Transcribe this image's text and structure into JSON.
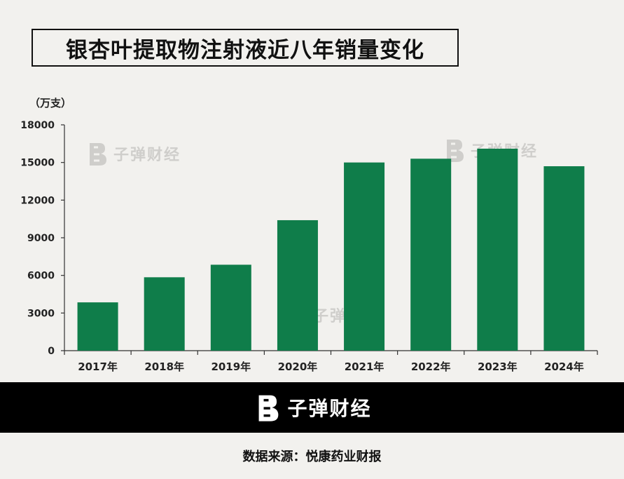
{
  "title": "银杏叶提取物注射液近八年销量变化",
  "unit": "（万支）",
  "brand": "子弹财经",
  "source": "数据来源：悦康药业财报",
  "colors": {
    "bar": "#0f7d4a",
    "band": "#000000",
    "background": "#f2f1ee"
  },
  "icons": {
    "logo": "bullet-logo-icon"
  },
  "chart_data": {
    "type": "bar",
    "categories": [
      "2017年",
      "2018年",
      "2019年",
      "2020年",
      "2021年",
      "2022年",
      "2023年",
      "2024年"
    ],
    "values": [
      3850,
      5850,
      6850,
      10400,
      15000,
      15300,
      16100,
      14700
    ],
    "yticks": [
      "0",
      "3000",
      "6000",
      "9000",
      "12000",
      "15000",
      "18000"
    ],
    "ylim": [
      0,
      18000
    ],
    "grid": false,
    "legend": "none"
  }
}
